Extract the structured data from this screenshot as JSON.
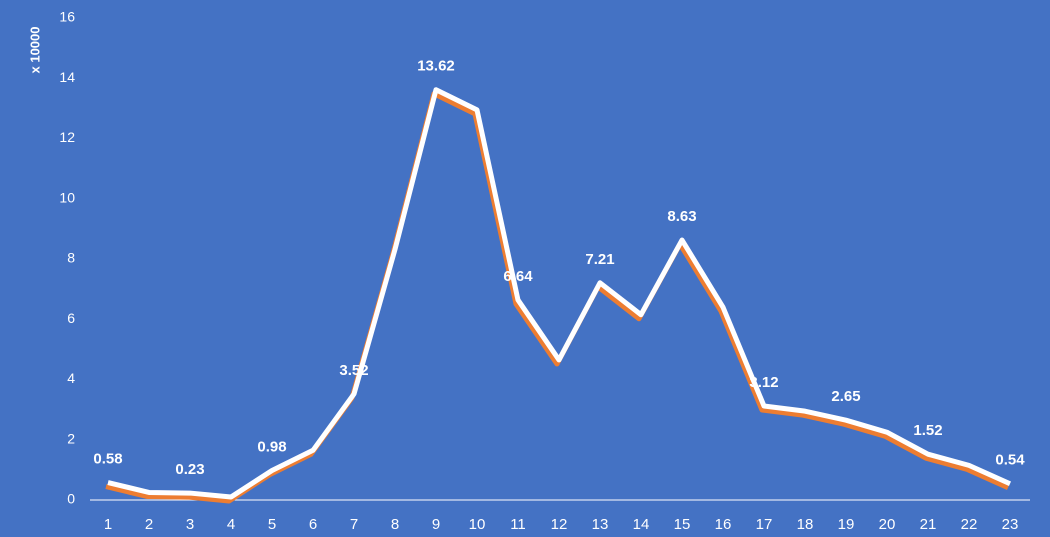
{
  "chart_data": {
    "type": "line",
    "y_axis_label": "x 10000",
    "categories": [
      "1",
      "2",
      "3",
      "4",
      "5",
      "6",
      "7",
      "8",
      "9",
      "10",
      "11",
      "12",
      "13",
      "14",
      "15",
      "16",
      "17",
      "18",
      "19",
      "20",
      "21",
      "22",
      "23"
    ],
    "values": [
      0.58,
      0.25,
      0.23,
      0.1,
      0.98,
      1.65,
      3.52,
      8.32,
      13.62,
      12.95,
      6.64,
      4.65,
      7.21,
      6.15,
      8.63,
      6.4,
      3.12,
      2.95,
      2.65,
      2.25,
      1.52,
      1.15,
      0.54
    ],
    "color": "#ffffff",
    "shadow_color": "#ed7d31",
    "background": "#4472c4",
    "data_label_step": 2,
    "ylim": [
      0,
      16
    ],
    "yticks": [
      0,
      2,
      4,
      6,
      8,
      10,
      12,
      14,
      16
    ],
    "grid": false
  }
}
